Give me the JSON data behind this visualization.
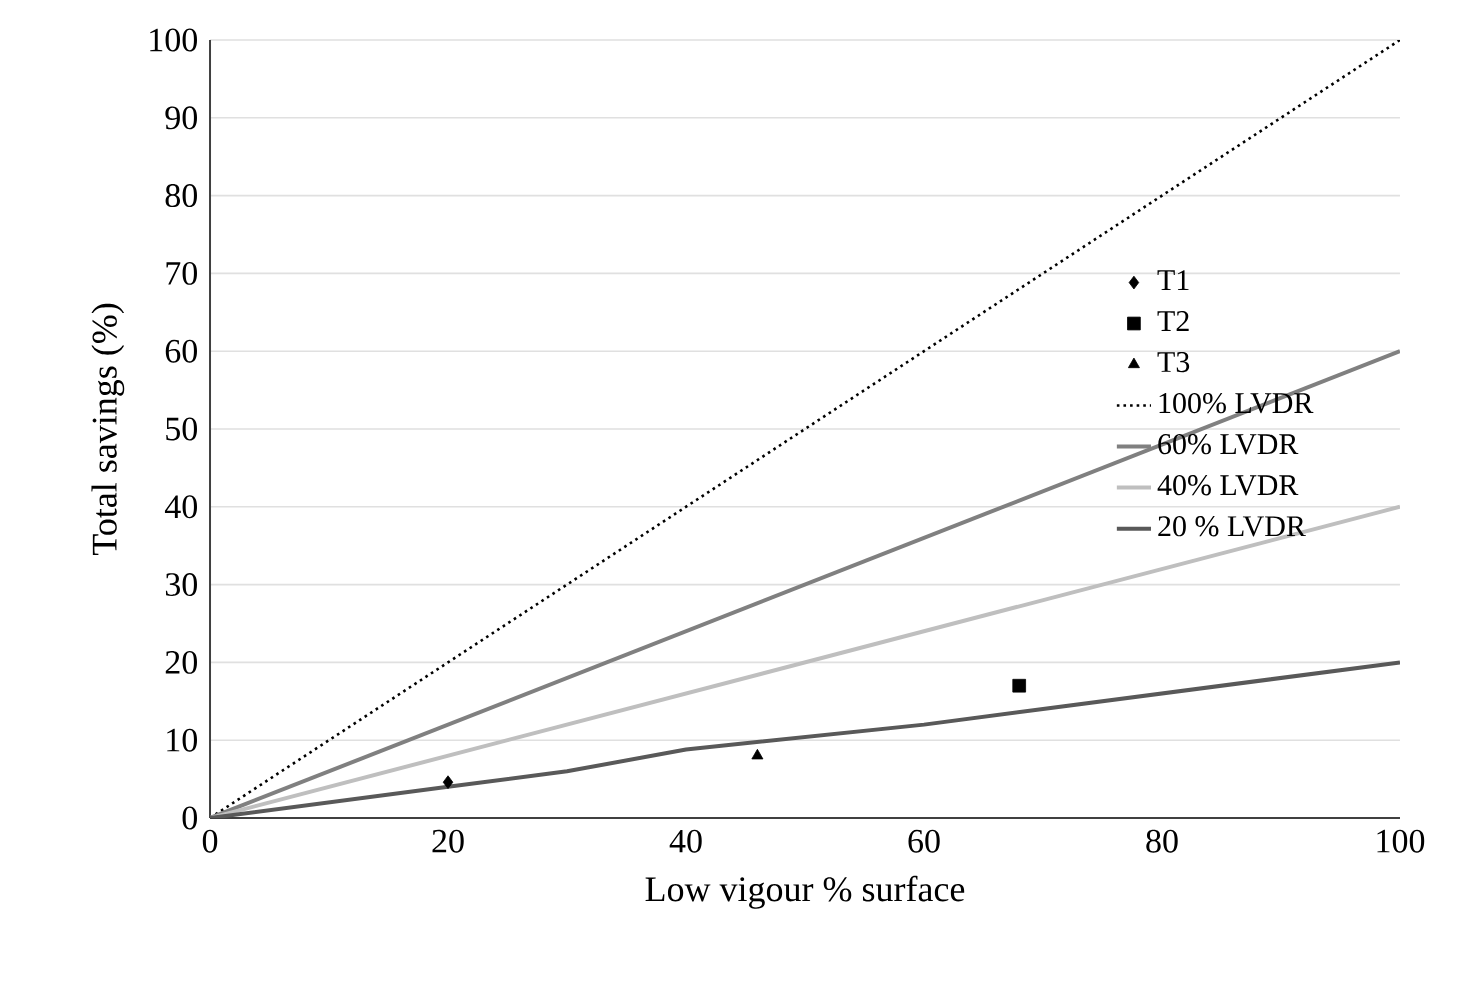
{
  "chart_data": {
    "type": "scatter",
    "xlabel": "Low vigour % surface",
    "ylabel": "Total savings (%)",
    "xlim": [
      0,
      100
    ],
    "xticks": [
      0,
      20,
      40,
      60,
      80,
      100
    ],
    "ylim": [
      0,
      100
    ],
    "yticks": [
      0,
      10,
      20,
      30,
      40,
      50,
      60,
      70,
      80,
      90,
      100
    ],
    "grid": "y",
    "legend": "right",
    "series": [
      {
        "name": "T1",
        "marker": "diamond",
        "color": "#000000",
        "x": [
          20
        ],
        "values": [
          4.6
        ]
      },
      {
        "name": "T2",
        "marker": "square",
        "color": "#000000",
        "x": [
          68
        ],
        "values": [
          17
        ]
      },
      {
        "name": "T3",
        "marker": "triangle",
        "color": "#000000",
        "x": [
          46
        ],
        "values": [
          8
        ]
      },
      {
        "name": "100% LVDR",
        "type": "line",
        "line_style": "dotted",
        "color": "#000000",
        "x": [
          0,
          100
        ],
        "values": [
          0,
          100
        ]
      },
      {
        "name": "60% LVDR",
        "type": "line",
        "line_style": "solid",
        "color": "#808080",
        "x": [
          0,
          100
        ],
        "values": [
          0,
          60
        ]
      },
      {
        "name": "40% LVDR",
        "type": "line",
        "line_style": "solid",
        "color": "#bfbfbf",
        "x": [
          0,
          100
        ],
        "values": [
          0,
          40
        ]
      },
      {
        "name": "20 % LVDR",
        "type": "line",
        "line_style": "solid",
        "color": "#595959",
        "x": [
          0,
          20,
          30,
          40,
          60,
          70,
          100
        ],
        "values": [
          0,
          4,
          6,
          8.8,
          12,
          14,
          20
        ]
      }
    ]
  }
}
